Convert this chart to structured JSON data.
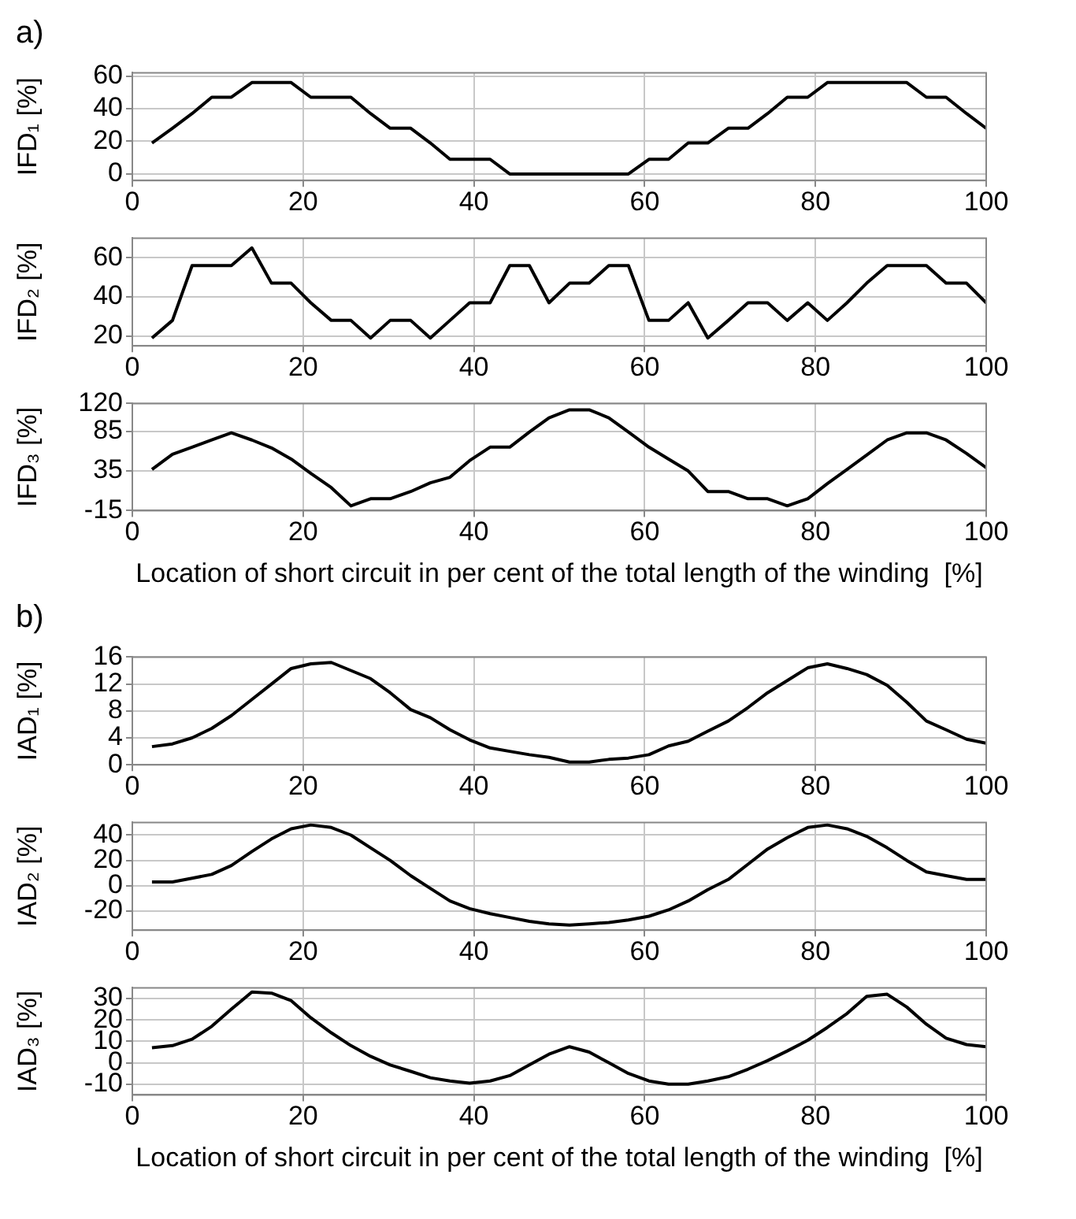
{
  "chart_data": [
    {
      "type": "line",
      "annotations": [
        "a)"
      ],
      "ylabel": "IFD₁ [%]",
      "x": [
        2.3,
        4.7,
        7,
        9.3,
        11.6,
        14,
        16.3,
        18.6,
        20.9,
        23.3,
        25.6,
        27.9,
        30.2,
        32.6,
        34.9,
        37.2,
        39.5,
        41.9,
        44.2,
        46.5,
        48.8,
        51.2,
        53.5,
        55.8,
        58.1,
        60.5,
        62.8,
        65.1,
        67.4,
        69.8,
        72.1,
        74.4,
        76.7,
        79.1,
        81.4,
        83.7,
        86,
        88.4,
        90.7,
        93,
        95.3,
        97.7,
        100
      ],
      "series": [
        {
          "color": "#000000",
          "values": [
            19,
            28,
            37,
            47,
            47,
            56,
            56,
            56,
            47,
            47,
            47,
            37,
            28,
            28,
            19,
            9,
            9,
            9,
            0,
            0,
            0,
            0,
            0,
            0,
            0,
            9,
            9,
            19,
            19,
            28,
            28,
            37,
            47,
            47,
            56,
            56,
            56,
            56,
            56,
            47,
            47,
            37,
            28
          ]
        }
      ],
      "xlim": [
        0,
        100
      ],
      "xticks": [
        0,
        20,
        40,
        60,
        80,
        100
      ],
      "ylim": [
        -4,
        62
      ],
      "yticks": [
        0,
        20,
        40,
        60
      ],
      "grid": true,
      "marker": "none",
      "line_style": "solid"
    },
    {
      "type": "line",
      "ylabel": "IFD₂ [%]",
      "x": [
        2.3,
        4.7,
        7,
        9.3,
        11.6,
        14,
        16.3,
        18.6,
        20.9,
        23.3,
        25.6,
        27.9,
        30.2,
        32.6,
        34.9,
        37.2,
        39.5,
        41.9,
        44.2,
        46.5,
        48.8,
        51.2,
        53.5,
        55.8,
        58.1,
        60.5,
        62.8,
        65.1,
        67.4,
        69.8,
        72.1,
        74.4,
        76.7,
        79.1,
        81.4,
        83.7,
        86,
        88.4,
        90.7,
        93,
        95.3,
        97.7,
        100
      ],
      "series": [
        {
          "color": "#000000",
          "values": [
            19,
            28,
            56,
            56,
            56,
            65,
            47,
            47,
            37,
            28,
            28,
            19,
            28,
            28,
            19,
            28,
            37,
            37,
            56,
            56,
            37,
            47,
            47,
            56,
            56,
            28,
            28,
            37,
            19,
            28,
            37,
            37,
            28,
            37,
            28,
            37,
            47,
            56,
            56,
            56,
            47,
            47,
            37
          ]
        }
      ],
      "xlim": [
        0,
        100
      ],
      "xticks": [
        0,
        20,
        40,
        60,
        80,
        100
      ],
      "ylim": [
        15,
        70
      ],
      "yticks": [
        20,
        40,
        60
      ],
      "grid": true,
      "marker": "none",
      "line_style": "solid"
    },
    {
      "type": "line",
      "xlabel": "Location of short circuit in per cent of the total length of the winding  [%]",
      "ylabel": "IFD₃ [%]",
      "x": [
        2.3,
        4.7,
        7,
        9.3,
        11.6,
        14,
        16.3,
        18.6,
        20.9,
        23.3,
        25.6,
        27.9,
        30.2,
        32.6,
        34.9,
        37.2,
        39.5,
        41.9,
        44.2,
        46.5,
        48.8,
        51.2,
        53.5,
        55.8,
        58.1,
        60.5,
        62.8,
        65.1,
        67.4,
        69.8,
        72.1,
        74.4,
        76.7,
        79.1,
        81.4,
        83.7,
        86,
        88.4,
        90.7,
        93,
        95.3,
        97.7,
        100
      ],
      "series": [
        {
          "color": "#000000",
          "values": [
            37,
            56,
            65,
            74,
            83,
            74,
            64,
            50,
            32,
            14,
            -9,
            0,
            0,
            9,
            20,
            27,
            48,
            65,
            65,
            84,
            102,
            112,
            112,
            102,
            84,
            65,
            50,
            35,
            9,
            9,
            0,
            0,
            -9,
            0,
            19,
            37,
            55,
            74,
            83,
            83,
            74,
            57,
            39
          ]
        }
      ],
      "xlim": [
        0,
        100
      ],
      "xticks": [
        0,
        20,
        40,
        60,
        80,
        100
      ],
      "ylim": [
        -15,
        120
      ],
      "yticks": [
        -15,
        35,
        85,
        120
      ],
      "grid": true,
      "marker": "none",
      "line_style": "solid"
    },
    {
      "type": "line",
      "annotations": [
        "b)"
      ],
      "ylabel": "IAD₁ [%]",
      "x": [
        2.3,
        4.7,
        7,
        9.3,
        11.6,
        14,
        16.3,
        18.6,
        20.9,
        23.3,
        25.6,
        27.9,
        30.2,
        32.6,
        34.9,
        37.2,
        39.5,
        41.9,
        44.2,
        46.5,
        48.8,
        51.2,
        53.5,
        55.8,
        58.1,
        60.5,
        62.8,
        65.1,
        67.4,
        69.8,
        72.1,
        74.4,
        76.7,
        79.1,
        81.4,
        83.7,
        86,
        88.4,
        90.7,
        93,
        95.3,
        97.7,
        100
      ],
      "series": [
        {
          "color": "#000000",
          "values": [
            2.7,
            3.1,
            4,
            5.4,
            7.3,
            9.7,
            12,
            14.3,
            15,
            15.2,
            14,
            12.8,
            10.7,
            8.2,
            7,
            5.2,
            3.7,
            2.5,
            2,
            1.5,
            1.1,
            0.4,
            0.4,
            0.8,
            1,
            1.5,
            2.8,
            3.5,
            5,
            6.5,
            8.5,
            10.7,
            12.5,
            14.4,
            15,
            14.3,
            13.4,
            11.8,
            9.3,
            6.5,
            5.2,
            3.8,
            3.2
          ]
        }
      ],
      "xlim": [
        0,
        100
      ],
      "xticks": [
        0,
        20,
        40,
        60,
        80,
        100
      ],
      "ylim": [
        0,
        16
      ],
      "yticks": [
        0,
        4,
        8,
        12,
        16
      ],
      "grid": true,
      "marker": "none",
      "line_style": "solid"
    },
    {
      "type": "line",
      "ylabel": "IAD₂ [%]",
      "x": [
        2.3,
        4.7,
        7,
        9.3,
        11.6,
        14,
        16.3,
        18.6,
        20.9,
        23.3,
        25.6,
        27.9,
        30.2,
        32.6,
        34.9,
        37.2,
        39.5,
        41.9,
        44.2,
        46.5,
        48.8,
        51.2,
        53.5,
        55.8,
        58.1,
        60.5,
        62.8,
        65.1,
        67.4,
        69.8,
        72.1,
        74.4,
        76.7,
        79.1,
        81.4,
        83.7,
        86,
        88.4,
        90.7,
        93,
        95.3,
        97.7,
        100
      ],
      "series": [
        {
          "color": "#000000",
          "values": [
            3,
            3,
            6,
            9,
            16,
            27,
            37,
            45,
            48,
            46,
            40,
            30,
            20,
            8,
            -2,
            -12,
            -18,
            -22,
            -25,
            -28,
            -30,
            -31,
            -30,
            -29,
            -27,
            -24,
            -19,
            -12,
            -3,
            5,
            17,
            29,
            38,
            46,
            48,
            45,
            39,
            30,
            20,
            11,
            8,
            5,
            5
          ]
        }
      ],
      "xlim": [
        0,
        100
      ],
      "xticks": [
        0,
        20,
        40,
        60,
        80,
        100
      ],
      "ylim": [
        -35,
        50
      ],
      "yticks": [
        -20,
        0,
        20,
        40
      ],
      "grid": true,
      "marker": "none",
      "line_style": "solid"
    },
    {
      "type": "line",
      "xlabel": "Location of short circuit in per cent of the total length of the winding  [%]",
      "ylabel": "IAD₃ [%]",
      "x": [
        2.3,
        4.7,
        7,
        9.3,
        11.6,
        14,
        16.3,
        18.6,
        20.9,
        23.3,
        25.6,
        27.9,
        30.2,
        32.6,
        34.9,
        37.2,
        39.5,
        41.9,
        44.2,
        46.5,
        48.8,
        51.2,
        53.5,
        55.8,
        58.1,
        60.5,
        62.8,
        65.1,
        67.4,
        69.8,
        72.1,
        74.4,
        76.7,
        79.1,
        81.4,
        83.7,
        86,
        88.4,
        90.7,
        93,
        95.3,
        97.7,
        100
      ],
      "series": [
        {
          "color": "#000000",
          "values": [
            7,
            8,
            11,
            17,
            25,
            33,
            32.5,
            29,
            21,
            14,
            8,
            3,
            -1,
            -4,
            -7,
            -8.5,
            -9.5,
            -8.5,
            -6,
            -1,
            4,
            7.5,
            5,
            0,
            -5,
            -8.5,
            -10,
            -10,
            -8.5,
            -6.5,
            -3,
            1,
            5.5,
            10.5,
            16.5,
            23,
            31,
            32,
            26,
            18,
            11.5,
            8.5,
            7.5
          ]
        }
      ],
      "xlim": [
        0,
        100
      ],
      "xticks": [
        0,
        20,
        40,
        60,
        80,
        100
      ],
      "ylim": [
        -15,
        35
      ],
      "yticks": [
        -10,
        0,
        10,
        20,
        30
      ],
      "grid": true,
      "marker": "none",
      "line_style": "solid"
    }
  ]
}
